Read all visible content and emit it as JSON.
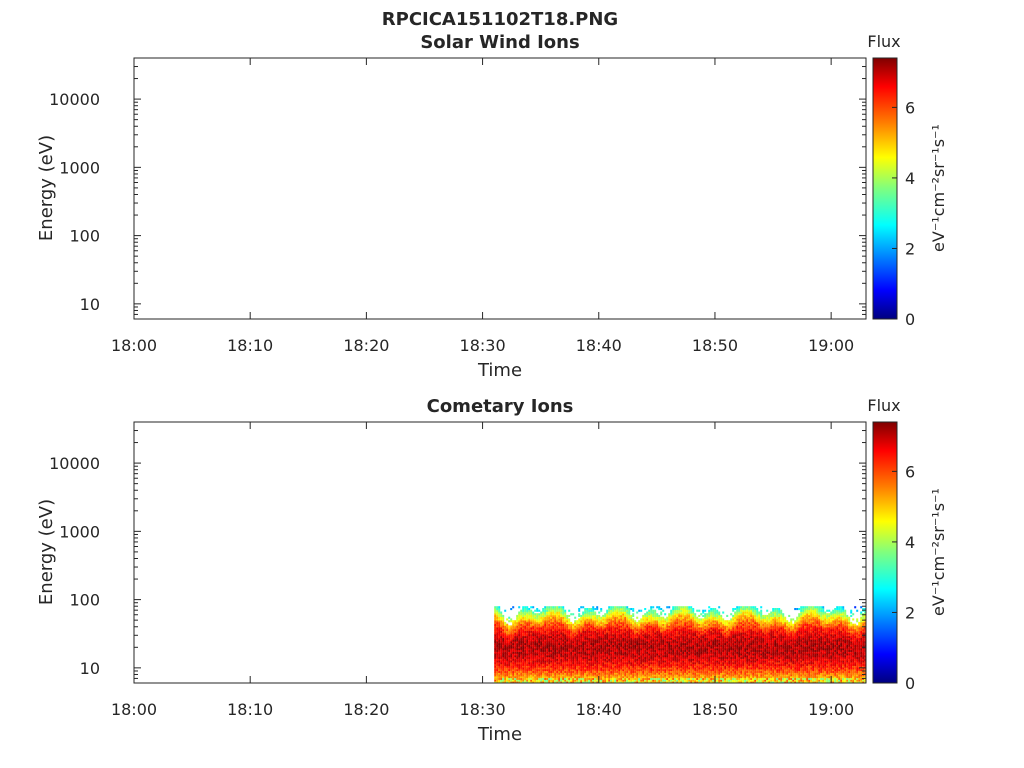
{
  "figure": {
    "title": "RPCICA151102T18.PNG"
  },
  "colormap": [
    "#00007f",
    "#0000ff",
    "#007fff",
    "#00ffff",
    "#7fff7f",
    "#ffff00",
    "#ff7f00",
    "#ff0000",
    "#7f0000"
  ],
  "chart_data": [
    {
      "type": "heatmap",
      "title": "Solar Wind Ions",
      "xlabel": "Time",
      "ylabel": "Energy (eV)",
      "x_ticks": [
        "18:00",
        "18:10",
        "18:20",
        "18:30",
        "18:40",
        "18:50",
        "19:00"
      ],
      "x_range_minutes": [
        0,
        63
      ],
      "y_scale": "log",
      "y_ticks": [
        10,
        100,
        1000,
        10000
      ],
      "y_tick_labels": [
        "10",
        "100",
        "1000",
        "10000"
      ],
      "y_range": [
        6,
        40000
      ],
      "colorbar": {
        "title": "Flux",
        "units": "eV⁻¹cm⁻²sr⁻¹s⁻¹",
        "ticks": [
          "0",
          "2",
          "4",
          "6"
        ],
        "range": [
          0,
          7.4
        ]
      },
      "data_region": null
    },
    {
      "type": "heatmap",
      "title": "Cometary Ions",
      "xlabel": "Time",
      "ylabel": "Energy (eV)",
      "x_ticks": [
        "18:00",
        "18:10",
        "18:20",
        "18:30",
        "18:40",
        "18:50",
        "19:00"
      ],
      "x_range_minutes": [
        0,
        63
      ],
      "y_scale": "log",
      "y_ticks": [
        10,
        100,
        1000,
        10000
      ],
      "y_tick_labels": [
        "10",
        "100",
        "1000",
        "10000"
      ],
      "y_range": [
        6,
        40000
      ],
      "colorbar": {
        "title": "Flux",
        "units": "eV⁻¹cm⁻²sr⁻¹s⁻¹",
        "ticks": [
          "0",
          "2",
          "4",
          "6"
        ],
        "range": [
          0,
          7.4
        ]
      },
      "data_region": {
        "time_start_minutes": 31,
        "time_end_minutes": 63,
        "energy_min": 6,
        "energy_max": 80,
        "peak_energy": 20,
        "peak_flux": 7.0
      }
    }
  ]
}
